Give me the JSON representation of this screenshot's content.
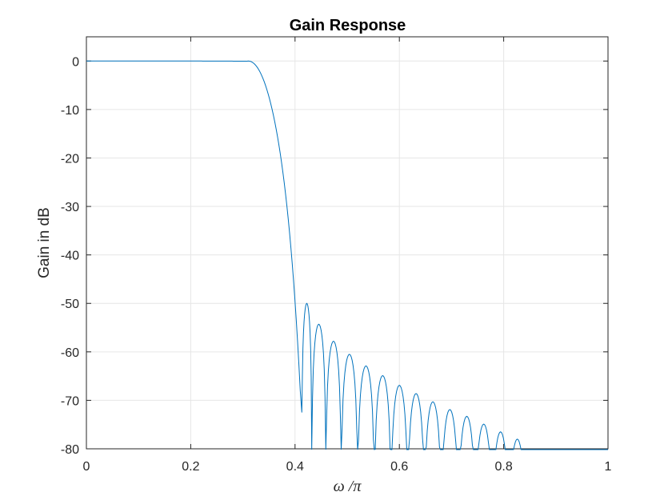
{
  "chart_data": {
    "type": "line",
    "title": "Gain Response",
    "xlabel": "ω /π",
    "ylabel": "Gain in dB",
    "xlim": [
      0,
      1
    ],
    "ylim": [
      -80,
      5
    ],
    "grid": true,
    "x_ticks": [
      "0",
      "0.2",
      "0.4",
      "0.6",
      "0.8",
      "1"
    ],
    "y_ticks": [
      "0",
      "-10",
      "-20",
      "-30",
      "-40",
      "-50",
      "-60",
      "-70",
      "-80"
    ],
    "line_color": "#0072BD",
    "series": [
      {
        "passband_edge": 0.31,
        "passband_level_db": 0,
        "stopband_start": 0.41,
        "sidelobe_spacing": 0.0325,
        "sidelobe_peaks": [
          {
            "x": 0.419,
            "y": -50.0
          },
          {
            "x": 0.445,
            "y": -54.3
          },
          {
            "x": 0.473,
            "y": -57.8
          },
          {
            "x": 0.504,
            "y": -60.5
          },
          {
            "x": 0.536,
            "y": -62.9
          },
          {
            "x": 0.568,
            "y": -64.9
          },
          {
            "x": 0.6,
            "y": -66.9
          },
          {
            "x": 0.632,
            "y": -68.6
          },
          {
            "x": 0.664,
            "y": -70.3
          },
          {
            "x": 0.697,
            "y": -71.9
          },
          {
            "x": 0.729,
            "y": -73.3
          },
          {
            "x": 0.762,
            "y": -74.9
          },
          {
            "x": 0.794,
            "y": -76.5
          },
          {
            "x": 0.826,
            "y": -78.0
          }
        ]
      }
    ]
  }
}
